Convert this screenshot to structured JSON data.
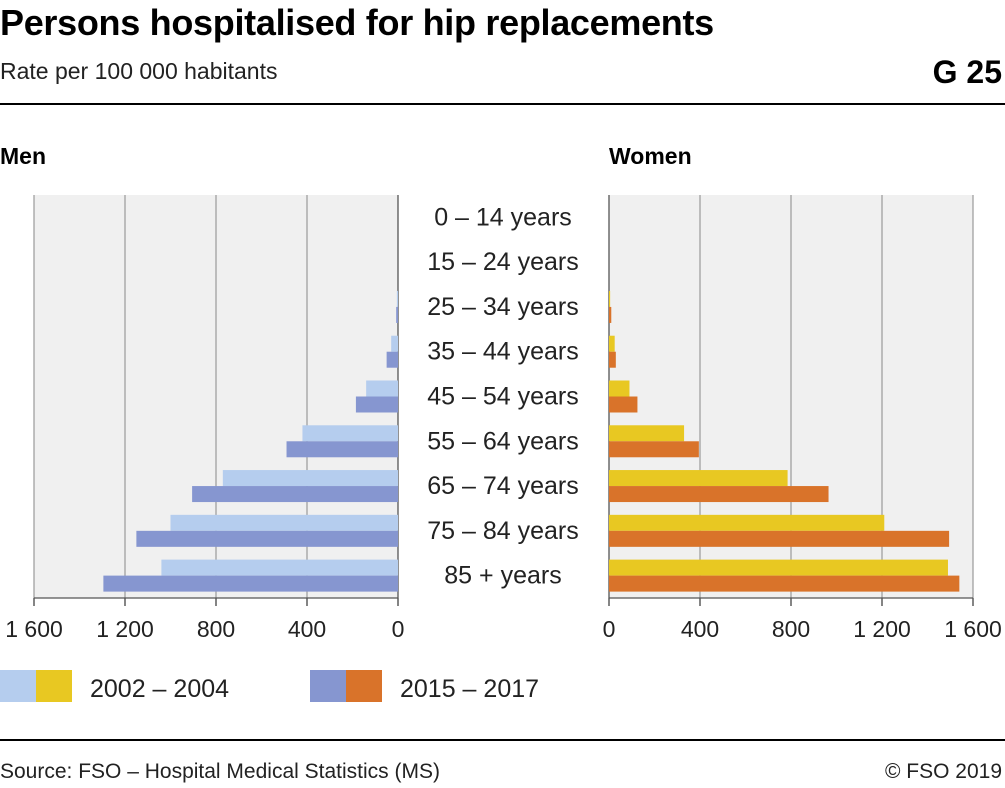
{
  "header": {
    "title": "Persons hospitalised for hip replacements",
    "subtitle": "Rate per 100 000 habitants",
    "code": "G 25"
  },
  "footer": {
    "source": "Source: FSO – Hospital Medical Statistics (MS)",
    "copyright": "© FSO 2019"
  },
  "colors": {
    "men_2002": "#b5cdee",
    "men_2015": "#8696d0",
    "women_2002": "#e8c822",
    "women_2015": "#d9732a",
    "panel_bg": "#f0f0f0",
    "grid": "#999999"
  },
  "chart_data": {
    "type": "bar",
    "orientation": "horizontal",
    "layout": "population-pyramid",
    "categories": [
      "0 – 14 years",
      "15 – 24 years",
      "25 – 34 years",
      "35 – 44 years",
      "45 – 54 years",
      "55 – 64 years",
      "65 – 74 years",
      "75 – 84 years",
      "85 + years"
    ],
    "panels": [
      {
        "name": "Men",
        "direction": "left",
        "xlim": [
          0,
          1600
        ],
        "ticks": [
          0,
          400,
          800,
          1200,
          1600
        ],
        "tick_labels": [
          "0",
          "400",
          "800",
          "1 200",
          "1 600"
        ],
        "series": [
          {
            "period": "2002 – 2004",
            "values": [
              0,
              0,
              5,
              30,
              140,
              420,
              770,
              1000,
              1040
            ]
          },
          {
            "period": "2015 – 2017",
            "values": [
              0,
              0,
              8,
              50,
              185,
              490,
              905,
              1150,
              1295
            ]
          }
        ]
      },
      {
        "name": "Women",
        "direction": "right",
        "xlim": [
          0,
          1600
        ],
        "ticks": [
          0,
          400,
          800,
          1200,
          1600
        ],
        "tick_labels": [
          "0",
          "400",
          "800",
          "1 200",
          "1 600"
        ],
        "series": [
          {
            "period": "2002 – 2004",
            "values": [
              0,
              0,
              5,
              25,
              90,
              330,
              785,
              1210,
              1490
            ]
          },
          {
            "period": "2015 – 2017",
            "values": [
              0,
              0,
              10,
              30,
              125,
              395,
              965,
              1495,
              1540
            ]
          }
        ]
      }
    ],
    "legend": [
      {
        "label": "2002 – 2004",
        "colors": [
          "#b5cdee",
          "#e8c822"
        ]
      },
      {
        "label": "2015 – 2017",
        "colors": [
          "#8696d0",
          "#d9732a"
        ]
      }
    ],
    "legend_position": "bottom-left",
    "grid": true
  }
}
